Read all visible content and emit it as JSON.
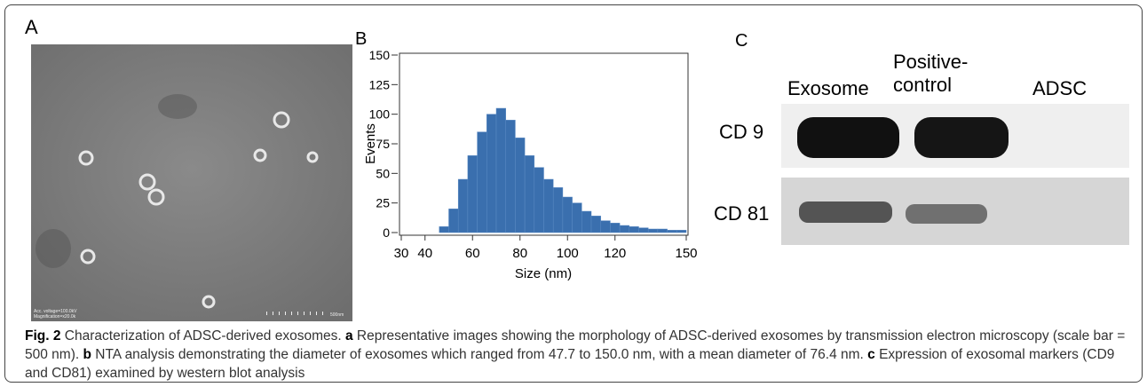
{
  "panels": {
    "a": {
      "label": "A",
      "image_texts": [
        "Acc. voltage=100.0kV",
        "Magnification=x20.0k",
        "500nm"
      ]
    },
    "b": {
      "label": "B"
    },
    "c": {
      "label": "C",
      "columns": [
        "Exosome",
        "Positive-\ncontrol",
        "ADSC"
      ],
      "rows": [
        "CD 9",
        "CD 81"
      ]
    }
  },
  "chart_data": {
    "type": "histogram",
    "xlabel": "Size (nm)",
    "ylabel": "Events",
    "color": "#3a6fae",
    "bins": [
      46,
      50,
      54,
      58,
      62,
      66,
      70,
      74,
      78,
      82,
      86,
      90,
      94,
      98,
      102,
      106,
      110,
      114,
      118,
      122,
      126,
      130,
      134,
      138,
      142,
      146,
      150
    ],
    "values": [
      5,
      20,
      45,
      65,
      85,
      100,
      105,
      95,
      80,
      65,
      55,
      45,
      38,
      30,
      25,
      18,
      14,
      10,
      8,
      6,
      5,
      4,
      3,
      3,
      2,
      2
    ],
    "xlim": [
      30,
      150
    ],
    "ylim": [
      0,
      150
    ],
    "xticks": [
      30,
      40,
      60,
      80,
      100,
      120,
      150
    ],
    "yticks": [
      0,
      25,
      50,
      75,
      100,
      125,
      150
    ]
  },
  "caption": {
    "label": "Fig. 2",
    "title": "Characterization of ADSC-derived exosomes.",
    "parts": [
      {
        "letter": "a",
        "text": "Representative images showing the morphology of ADSC-derived exosomes by transmission electron microscopy (scale bar = 500 nm)."
      },
      {
        "letter": "b",
        "text": "NTA analysis demonstrating the diameter of exosomes which ranged from 47.7 to 150.0 nm, with a mean diameter of 76.4 nm."
      },
      {
        "letter": "c",
        "text": "Expression of exosomal markers (CD9 and CD81) examined by western blot analysis"
      }
    ]
  }
}
